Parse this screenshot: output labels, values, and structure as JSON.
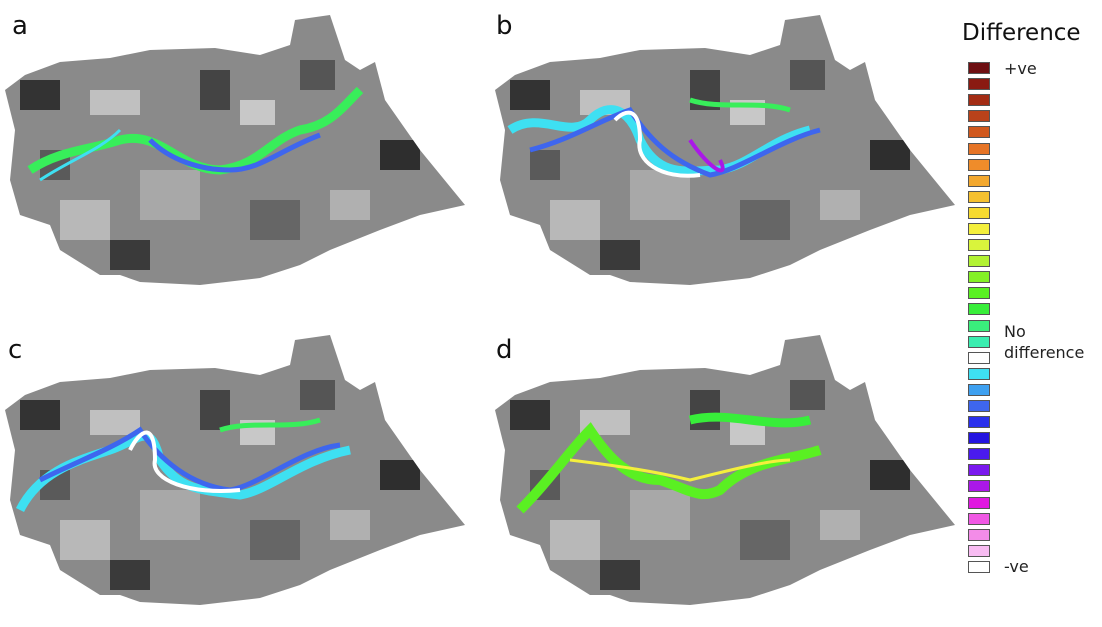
{
  "panels": [
    {
      "label": "a"
    },
    {
      "label": "b"
    },
    {
      "label": "c"
    },
    {
      "label": "d"
    }
  ],
  "legend": {
    "title": "Difference",
    "entries": [
      {
        "color": "#6e0f12",
        "label": "+ve"
      },
      {
        "color": "#8a1a12"
      },
      {
        "color": "#a32c14"
      },
      {
        "color": "#b9421a"
      },
      {
        "color": "#d0581e"
      },
      {
        "color": "#e67426"
      },
      {
        "color": "#ef8c2a"
      },
      {
        "color": "#f3a82e"
      },
      {
        "color": "#f5c030"
      },
      {
        "color": "#f7da30"
      },
      {
        "color": "#f4ef3c"
      },
      {
        "color": "#d9f43c"
      },
      {
        "color": "#b2f232"
      },
      {
        "color": "#84f026"
      },
      {
        "color": "#5af022"
      },
      {
        "color": "#38ee3a"
      },
      {
        "color": "#3aee7c"
      },
      {
        "color": "#3aeeb0",
        "label": "No difference"
      },
      {
        "color": "#ffffff"
      },
      {
        "color": "#3ee0f2"
      },
      {
        "color": "#3ea0f0"
      },
      {
        "color": "#3e66ee"
      },
      {
        "color": "#2a30ec"
      },
      {
        "color": "#2414e0"
      },
      {
        "color": "#4a1aee"
      },
      {
        "color": "#7a18ee"
      },
      {
        "color": "#aa18e8"
      },
      {
        "color": "#e018e0"
      },
      {
        "color": "#f058e4"
      },
      {
        "color": "#f38ce8"
      },
      {
        "color": "#f8bcf2"
      },
      {
        "color": "#ffffff",
        "label": "-ve"
      }
    ]
  }
}
